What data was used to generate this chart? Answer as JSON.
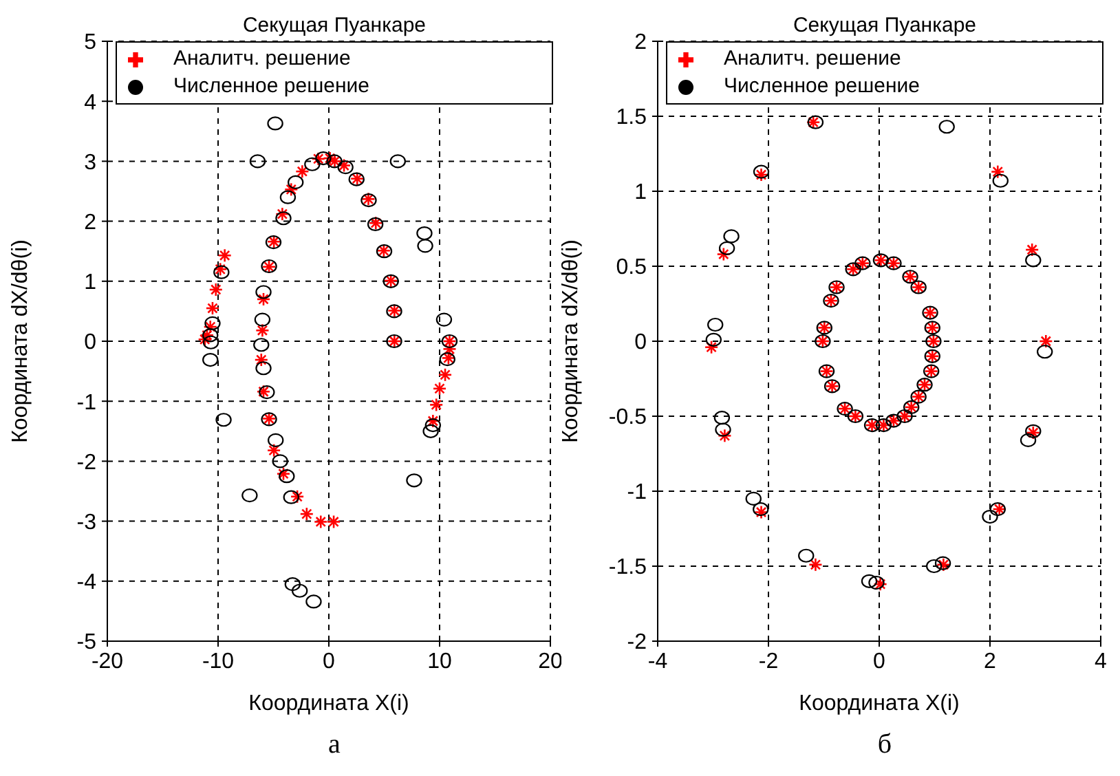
{
  "chart_data": [
    {
      "type": "scatter",
      "title": "Секущая Пуанкаре",
      "xlabel": "Координата X(i)",
      "ylabel": "Координата dX/dθ(i)",
      "annotations": [
        "а"
      ],
      "xlim": [
        -20,
        20
      ],
      "xticks": [
        -20,
        -10,
        0,
        10,
        20
      ],
      "ylim": [
        -5,
        5
      ],
      "yticks": [
        -5,
        -4,
        -3,
        -2,
        -1,
        0,
        1,
        2,
        3,
        4,
        5
      ],
      "grid": true,
      "legend": "top",
      "series": [
        {
          "name": "Аналитч. решение",
          "color": "#ff0000",
          "marker": "cross",
          "x": [
            -9.4,
            -9.8,
            -10.2,
            -10.5,
            -10.7,
            -11,
            -11.2,
            -4.96,
            -5.4,
            -5.9,
            -6.0,
            -6.1,
            -4.2,
            -3.4,
            -2.4,
            -0.95,
            0.1,
            0.53,
            1.37,
            2.56,
            3.57,
            4.24,
            4.96,
            5.6,
            5.92,
            5.92,
            10.9,
            10.9,
            10.8,
            10.5,
            10.0,
            9.7,
            9.4,
            0.44,
            -5.9,
            -5.4,
            -4.96,
            -4.1,
            -2.85,
            -2.0,
            -0.73
          ],
          "values": [
            1.43,
            1.2,
            0.86,
            0.55,
            0.24,
            0.1,
            0.03,
            1.66,
            1.24,
            0.7,
            0.18,
            -0.31,
            2.12,
            2.53,
            2.83,
            3.04,
            3.05,
            3.0,
            2.93,
            2.71,
            2.37,
            1.97,
            1.51,
            1.01,
            0.51,
            0.0,
            0.0,
            -0.13,
            -0.28,
            -0.56,
            -0.79,
            -1.06,
            -1.33,
            -3.01,
            -0.84,
            -1.29,
            -1.82,
            -2.21,
            -2.59,
            -2.88,
            -3.01
          ]
        },
        {
          "name": "Численное решение",
          "color": "#000000",
          "marker": "circle",
          "x": [
            -4.84,
            -6.43,
            6.23,
            8.63,
            8.7,
            10.4,
            -10.65,
            -10.7,
            -6.0,
            -5.9,
            -6.1,
            -9.5,
            -7.15,
            -5.9,
            7.7,
            -3.27,
            -2.63,
            -1.37,
            -10.5,
            -10.7,
            -9.7,
            -5.4,
            -5.0,
            -4.1,
            -3.7,
            -3.0,
            -1.5,
            -0.5,
            0.5,
            1.5,
            2.5,
            3.6,
            4.2,
            5.0,
            5.6,
            5.9,
            5.9,
            10.9,
            10.7,
            9.4,
            9.2,
            -5.4,
            -4.8,
            -4.4,
            -3.8,
            -3.4,
            -5.6
          ],
          "values": [
            3.63,
            3.0,
            3.0,
            1.8,
            1.59,
            0.36,
            -0.02,
            -0.31,
            0.36,
            0.82,
            -0.06,
            -1.31,
            -2.57,
            -0.45,
            -2.32,
            -4.05,
            -4.16,
            -4.34,
            0.3,
            0.1,
            1.15,
            1.25,
            1.65,
            2.05,
            2.4,
            2.65,
            2.95,
            3.05,
            3.0,
            2.9,
            2.7,
            2.35,
            1.95,
            1.5,
            1.0,
            0.5,
            0.0,
            0.0,
            -0.3,
            -1.4,
            -1.5,
            -1.3,
            -1.65,
            -2.0,
            -2.25,
            -2.6,
            -0.85
          ]
        }
      ]
    },
    {
      "type": "scatter",
      "title": "Секущая Пуанкаре",
      "xlabel": "Координата X(i)",
      "ylabel": "Координата dX/dθ(i)",
      "annotations": [
        "б"
      ],
      "xlim": [
        -4,
        4
      ],
      "xticks": [
        -4,
        -2,
        0,
        2,
        4
      ],
      "ylim": [
        -2,
        2
      ],
      "yticks": [
        -2,
        -1.5,
        -1,
        -0.5,
        0,
        0.5,
        1,
        1.5,
        2
      ],
      "grid": true,
      "legend": "top",
      "series": [
        {
          "name": "Аналитч. решение",
          "color": "#ff0000",
          "marker": "cross",
          "x": [
            -1.02,
            -0.99,
            -0.87,
            -0.77,
            -0.47,
            -0.3,
            0.03,
            0.26,
            0.56,
            0.71,
            0.92,
            0.96,
            0.98,
            0.96,
            0.94,
            0.82,
            -0.95,
            -0.85,
            -0.62,
            -0.43,
            -0.13,
            0.08,
            0.26,
            0.46,
            0.58,
            0.71,
            -2.13,
            -2.81,
            -3.03,
            -1.19,
            2.14,
            2.76,
            3.01,
            -2.79,
            -2.13,
            -1.15,
            0.02,
            1.16,
            2.17,
            2.78
          ],
          "values": [
            0,
            0.09,
            0.27,
            0.36,
            0.48,
            0.52,
            0.54,
            0.52,
            0.43,
            0.36,
            0.19,
            0.09,
            0,
            -0.1,
            -0.2,
            -0.29,
            -0.2,
            -0.3,
            -0.45,
            -0.5,
            -0.56,
            -0.56,
            -0.53,
            -0.5,
            -0.44,
            -0.37,
            1.11,
            0.58,
            -0.04,
            1.46,
            1.13,
            0.61,
            0,
            -0.63,
            -1.14,
            -1.49,
            -1.62,
            -1.49,
            -1.12,
            -0.61
          ]
        },
        {
          "name": "Численное решение",
          "color": "#000000",
          "marker": "circle",
          "x": [
            -1.02,
            -0.99,
            -0.87,
            -0.77,
            -0.47,
            -0.3,
            0.03,
            0.26,
            0.56,
            0.71,
            0.92,
            0.96,
            0.98,
            0.96,
            0.94,
            0.82,
            -0.95,
            -0.85,
            -0.62,
            -0.43,
            -0.13,
            0.08,
            0.26,
            0.46,
            0.58,
            0.71,
            -2.13,
            -2.67,
            -2.75,
            -2.96,
            -2.99,
            -1.15,
            1.22,
            2.19,
            2.78,
            2.99,
            -2.84,
            -2.82,
            -2.27,
            -2.14,
            -1.32,
            -0.18,
            -0.05,
            0.99,
            1.15,
            2.0,
            2.14,
            2.69,
            2.78
          ],
          "values": [
            0,
            0.09,
            0.27,
            0.36,
            0.48,
            0.52,
            0.54,
            0.52,
            0.43,
            0.36,
            0.19,
            0.09,
            0,
            -0.1,
            -0.2,
            -0.29,
            -0.2,
            -0.3,
            -0.45,
            -0.5,
            -0.56,
            -0.56,
            -0.53,
            -0.5,
            -0.44,
            -0.37,
            1.13,
            0.7,
            0.62,
            0.11,
            0.01,
            1.46,
            1.43,
            1.07,
            0.54,
            -0.07,
            -0.51,
            -0.59,
            -1.05,
            -1.12,
            -1.43,
            -1.6,
            -1.61,
            -1.5,
            -1.48,
            -1.17,
            -1.12,
            -0.66,
            -0.6
          ]
        }
      ]
    }
  ]
}
